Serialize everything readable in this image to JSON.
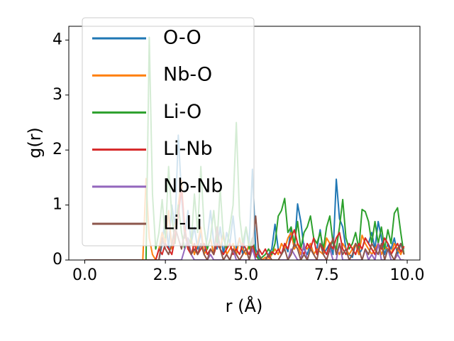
{
  "chart_data": {
    "type": "line",
    "xlabel": "r (Å)",
    "ylabel": "g(r)",
    "x": [
      0,
      0.1,
      0.2,
      0.3,
      0.4,
      0.5,
      0.6,
      0.7,
      0.8,
      0.9,
      1,
      1.1,
      1.2,
      1.3,
      1.4,
      1.5,
      1.6,
      1.7,
      1.8,
      1.9,
      2,
      2.1,
      2.2,
      2.3,
      2.4,
      2.5,
      2.6,
      2.7,
      2.8,
      2.9,
      3,
      3.1,
      3.2,
      3.3,
      3.4,
      3.5,
      3.6,
      3.7,
      3.8,
      3.9,
      4,
      4.1,
      4.2,
      4.3,
      4.4,
      4.5,
      4.6,
      4.7,
      4.8,
      4.9,
      5,
      5.1,
      5.2,
      5.3,
      5.4,
      5.5,
      5.6,
      5.7,
      5.8,
      5.9,
      6,
      6.1,
      6.2,
      6.3,
      6.4,
      6.5,
      6.6,
      6.7,
      6.8,
      6.9,
      7,
      7.1,
      7.2,
      7.3,
      7.4,
      7.5,
      7.6,
      7.7,
      7.8,
      7.9,
      8,
      8.1,
      8.2,
      8.3,
      8.4,
      8.5,
      8.6,
      8.7,
      8.8,
      8.9,
      9,
      9.1,
      9.2,
      9.3,
      9.4,
      9.5,
      9.6,
      9.7,
      9.8,
      9.9
    ],
    "series": [
      {
        "name": "O-O",
        "color": "#1f77b4",
        "values": [
          0,
          0,
          0,
          0,
          0,
          0,
          0,
          0,
          0,
          0,
          0,
          0,
          0,
          0,
          0,
          0,
          0,
          0,
          0,
          0,
          0,
          0,
          0,
          0,
          0.3,
          0.8,
          0.2,
          1.0,
          0.6,
          2.27,
          1.2,
          0.4,
          0.9,
          0.3,
          0.6,
          0.2,
          0.5,
          0.1,
          0.4,
          0.9,
          0.3,
          0.2,
          0.6,
          0.1,
          0.5,
          0.3,
          0.8,
          0.2,
          0.4,
          0.1,
          0.6,
          0.3,
          1.65,
          0.2,
          0.05,
          0,
          0,
          0.1,
          0.2,
          0.65,
          0.2,
          0.1,
          0.3,
          0.15,
          0.6,
          0.2,
          1.02,
          0.7,
          0.2,
          0.1,
          0.3,
          0.1,
          0.2,
          0.55,
          0.1,
          0.2,
          0.3,
          0.1,
          1.47,
          0.75,
          0.6,
          0.2,
          0.1,
          0.05,
          0.3,
          0.1,
          0.2,
          0.4,
          0.3,
          0.5,
          0.2,
          0.7,
          0.4,
          0.1,
          0.3,
          0.2,
          0.4,
          0.1,
          0.3,
          0.2
        ]
      },
      {
        "name": "Nb-O",
        "color": "#ff7f0e",
        "values": [
          0,
          0,
          0,
          0,
          0,
          0,
          0,
          0,
          0,
          0,
          0,
          0,
          0,
          0,
          0,
          0,
          0,
          0,
          0,
          1.48,
          0.4,
          0.1,
          0,
          0.2,
          0.5,
          0.3,
          0.9,
          0.2,
          0.6,
          1.0,
          1.45,
          0.5,
          0.2,
          0.4,
          0.1,
          0.3,
          0.6,
          0.1,
          0.2,
          0.4,
          0.1,
          0.3,
          0.2,
          0.5,
          0.1,
          0.2,
          0.3,
          0.1,
          0.4,
          0.2,
          0.1,
          0.3,
          0.2,
          0.1,
          0,
          0,
          0.05,
          0,
          0.1,
          0.2,
          0.1,
          0.3,
          0.2,
          0.4,
          0.5,
          0.2,
          0.3,
          0.1,
          0.25,
          0.2,
          0.3,
          0.1,
          0.2,
          0.15,
          0.1,
          0.4,
          0.3,
          0.35,
          0.2,
          0.1,
          0.3,
          0.2,
          0.1,
          0.2,
          0.3,
          0.1,
          0.45,
          0.3,
          0.2,
          0.1,
          0.2,
          0.3,
          0.1,
          0.25,
          0.2,
          0.1,
          0.3,
          0.2,
          0.1,
          0.25
        ]
      },
      {
        "name": "Li-O",
        "color": "#2ca02c",
        "values": [
          0,
          0,
          0,
          0,
          0,
          0,
          0,
          0,
          0,
          0,
          0,
          0,
          0,
          0,
          0,
          0,
          0,
          0,
          0,
          0,
          4.05,
          1.2,
          0.2,
          0.5,
          1.1,
          0.4,
          1.7,
          0.8,
          0.3,
          1.0,
          0.5,
          0.2,
          0.4,
          0.3,
          1.2,
          0.5,
          1.7,
          0.6,
          0.2,
          0.4,
          0.9,
          0.3,
          1.3,
          0.4,
          0.2,
          0.6,
          1.0,
          2.5,
          0.8,
          0.3,
          0.6,
          0.2,
          0.4,
          0.1,
          0,
          0.05,
          0.1,
          0.2,
          0.1,
          0.3,
          0.8,
          0.9,
          1.12,
          0.5,
          0.6,
          0.3,
          0.7,
          0.2,
          0.5,
          0.6,
          0.8,
          0.4,
          0.3,
          0.5,
          0.2,
          0.6,
          0.8,
          0.3,
          0.2,
          0.6,
          1.1,
          0.4,
          0.2,
          0.3,
          0.5,
          0.2,
          0.92,
          0.88,
          0.7,
          0.3,
          0.7,
          0.3,
          0.6,
          0.2,
          0.55,
          0.3,
          0.85,
          0.95,
          0.5,
          0.1
        ]
      },
      {
        "name": "Li-Nb",
        "color": "#d62728",
        "values": [
          0,
          0,
          0,
          0,
          0,
          0,
          0,
          0,
          0,
          0,
          0,
          0,
          0,
          0,
          0,
          0,
          0,
          0,
          0,
          0,
          0,
          0,
          0,
          0.2,
          0.1,
          0.3,
          0.2,
          0.1,
          0.4,
          0.8,
          1.3,
          0.6,
          0.2,
          0.1,
          0.3,
          0.1,
          0.2,
          0.3,
          0.1,
          0.2,
          0.1,
          0.3,
          0.2,
          0.1,
          0.2,
          0.3,
          0.1,
          0.2,
          0.1,
          0.3,
          0.2,
          0.1,
          0.3,
          0.05,
          0.2,
          0.1,
          0.2,
          0.05,
          0.15,
          0.1,
          0.2,
          0.1,
          0.3,
          0.2,
          0.4,
          0.55,
          0.3,
          0.2,
          0.1,
          0.3,
          0.2,
          0.4,
          0.1,
          0.3,
          0.2,
          0.1,
          0.3,
          0.2,
          0.4,
          0.5,
          0.2,
          0.1,
          0.3,
          0.2,
          0.1,
          0.3,
          0.2,
          0.4,
          0.3,
          0.2,
          0.1,
          0.3,
          0.2,
          0.4,
          0.3,
          0.1,
          0.2,
          0.3,
          0.15,
          0.25
        ]
      },
      {
        "name": "Nb-Nb",
        "color": "#9467bd",
        "values": [
          0,
          0,
          0,
          0,
          0,
          0,
          0,
          0,
          0,
          0,
          0,
          0,
          0,
          0,
          0,
          0,
          0,
          0,
          0,
          0,
          0,
          0,
          0,
          0,
          0,
          0,
          0,
          0,
          0,
          0,
          0,
          0.2,
          0.4,
          0.1,
          0,
          0,
          0,
          0,
          0,
          0.1,
          0,
          0,
          0,
          0,
          0.1,
          0,
          0.2,
          0,
          0,
          0,
          0,
          0,
          0.2,
          0,
          0,
          0,
          0,
          0,
          0,
          0,
          0,
          0,
          0,
          0,
          0.2,
          0.1,
          0,
          0,
          0.3,
          0,
          0,
          0,
          0,
          0,
          0,
          0,
          0.2,
          0,
          0,
          0.3,
          0,
          0,
          0,
          0,
          0,
          0,
          0,
          0.2,
          0,
          0.1,
          0,
          0.3,
          0,
          0,
          0.2,
          0,
          0,
          0.1,
          0,
          0
        ]
      },
      {
        "name": "Li-Li",
        "color": "#8c564b",
        "values": [
          0,
          0,
          0,
          0,
          0,
          0,
          0,
          0,
          0,
          0,
          0,
          0,
          0,
          0,
          0,
          0,
          0,
          0,
          0,
          0,
          0,
          0,
          0,
          0,
          0.4,
          0.2,
          0.1,
          0.3,
          0.6,
          0.4,
          0.2,
          0.5,
          0.3,
          0.1,
          0.2,
          0.1,
          0.3,
          0.1,
          0,
          0.2,
          0.1,
          0.6,
          0.2,
          0,
          0.1,
          0,
          0.2,
          0.1,
          0,
          0.1,
          0.2,
          0,
          0.3,
          0.8,
          0.1,
          0,
          0,
          0.1,
          0,
          0,
          0,
          0.1,
          0.2,
          0,
          0.1,
          0.3,
          0.2,
          0,
          0.1,
          0,
          0.2,
          0.1,
          0,
          0.3,
          0.1,
          0,
          0.2,
          0.4,
          0.1,
          0.3,
          0.1,
          0.2,
          0,
          0.1,
          0.3,
          0.2,
          0,
          0.2,
          0.1,
          0.3,
          0.2,
          0.1,
          0.3,
          0,
          0.2,
          0.1,
          0,
          0.2,
          0.3,
          0.1
        ]
      }
    ],
    "xlim": [
      -0.495,
      10.395
    ],
    "xticks": [
      {
        "value": 0,
        "label": "0.0"
      },
      2.5,
      {
        "value": 5,
        "label": "5.0"
      },
      7.5,
      {
        "value": 10,
        "label": "10.0"
      }
    ],
    "ylim": [
      0,
      4.25
    ],
    "yticks": [
      0,
      1,
      2,
      3,
      4
    ],
    "legend": "upper left"
  }
}
